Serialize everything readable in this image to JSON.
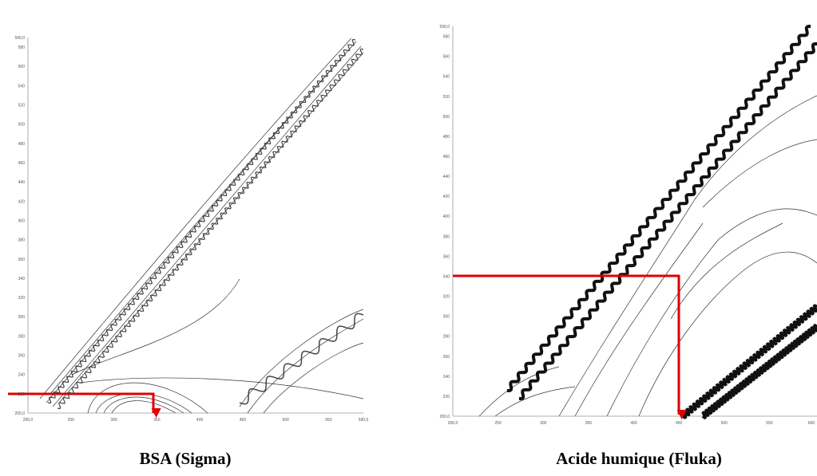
{
  "panels": [
    {
      "caption": "BSA (Sigma)",
      "yticks": [
        "590,0",
        "580",
        "560",
        "540",
        "520",
        "500",
        "480",
        "460",
        "440",
        "420",
        "400",
        "380",
        "360",
        "340",
        "320",
        "300",
        "280",
        "260",
        "240",
        "220",
        "200,0"
      ],
      "xticks": [
        "200,0",
        "250",
        "300",
        "350",
        "400",
        "450",
        "500",
        "550",
        "590,5"
      ]
    },
    {
      "caption": "Acide humique (Fluka)",
      "yticks": [
        "590,0",
        "580",
        "560",
        "540",
        "520",
        "500",
        "480",
        "460",
        "440",
        "420",
        "400",
        "380",
        "360",
        "340",
        "320",
        "300",
        "280",
        "260",
        "240",
        "220",
        "200,0"
      ],
      "xticks": [
        "200,0",
        "250",
        "300",
        "350",
        "400",
        "450",
        "500",
        "550",
        "600"
      ]
    }
  ]
}
